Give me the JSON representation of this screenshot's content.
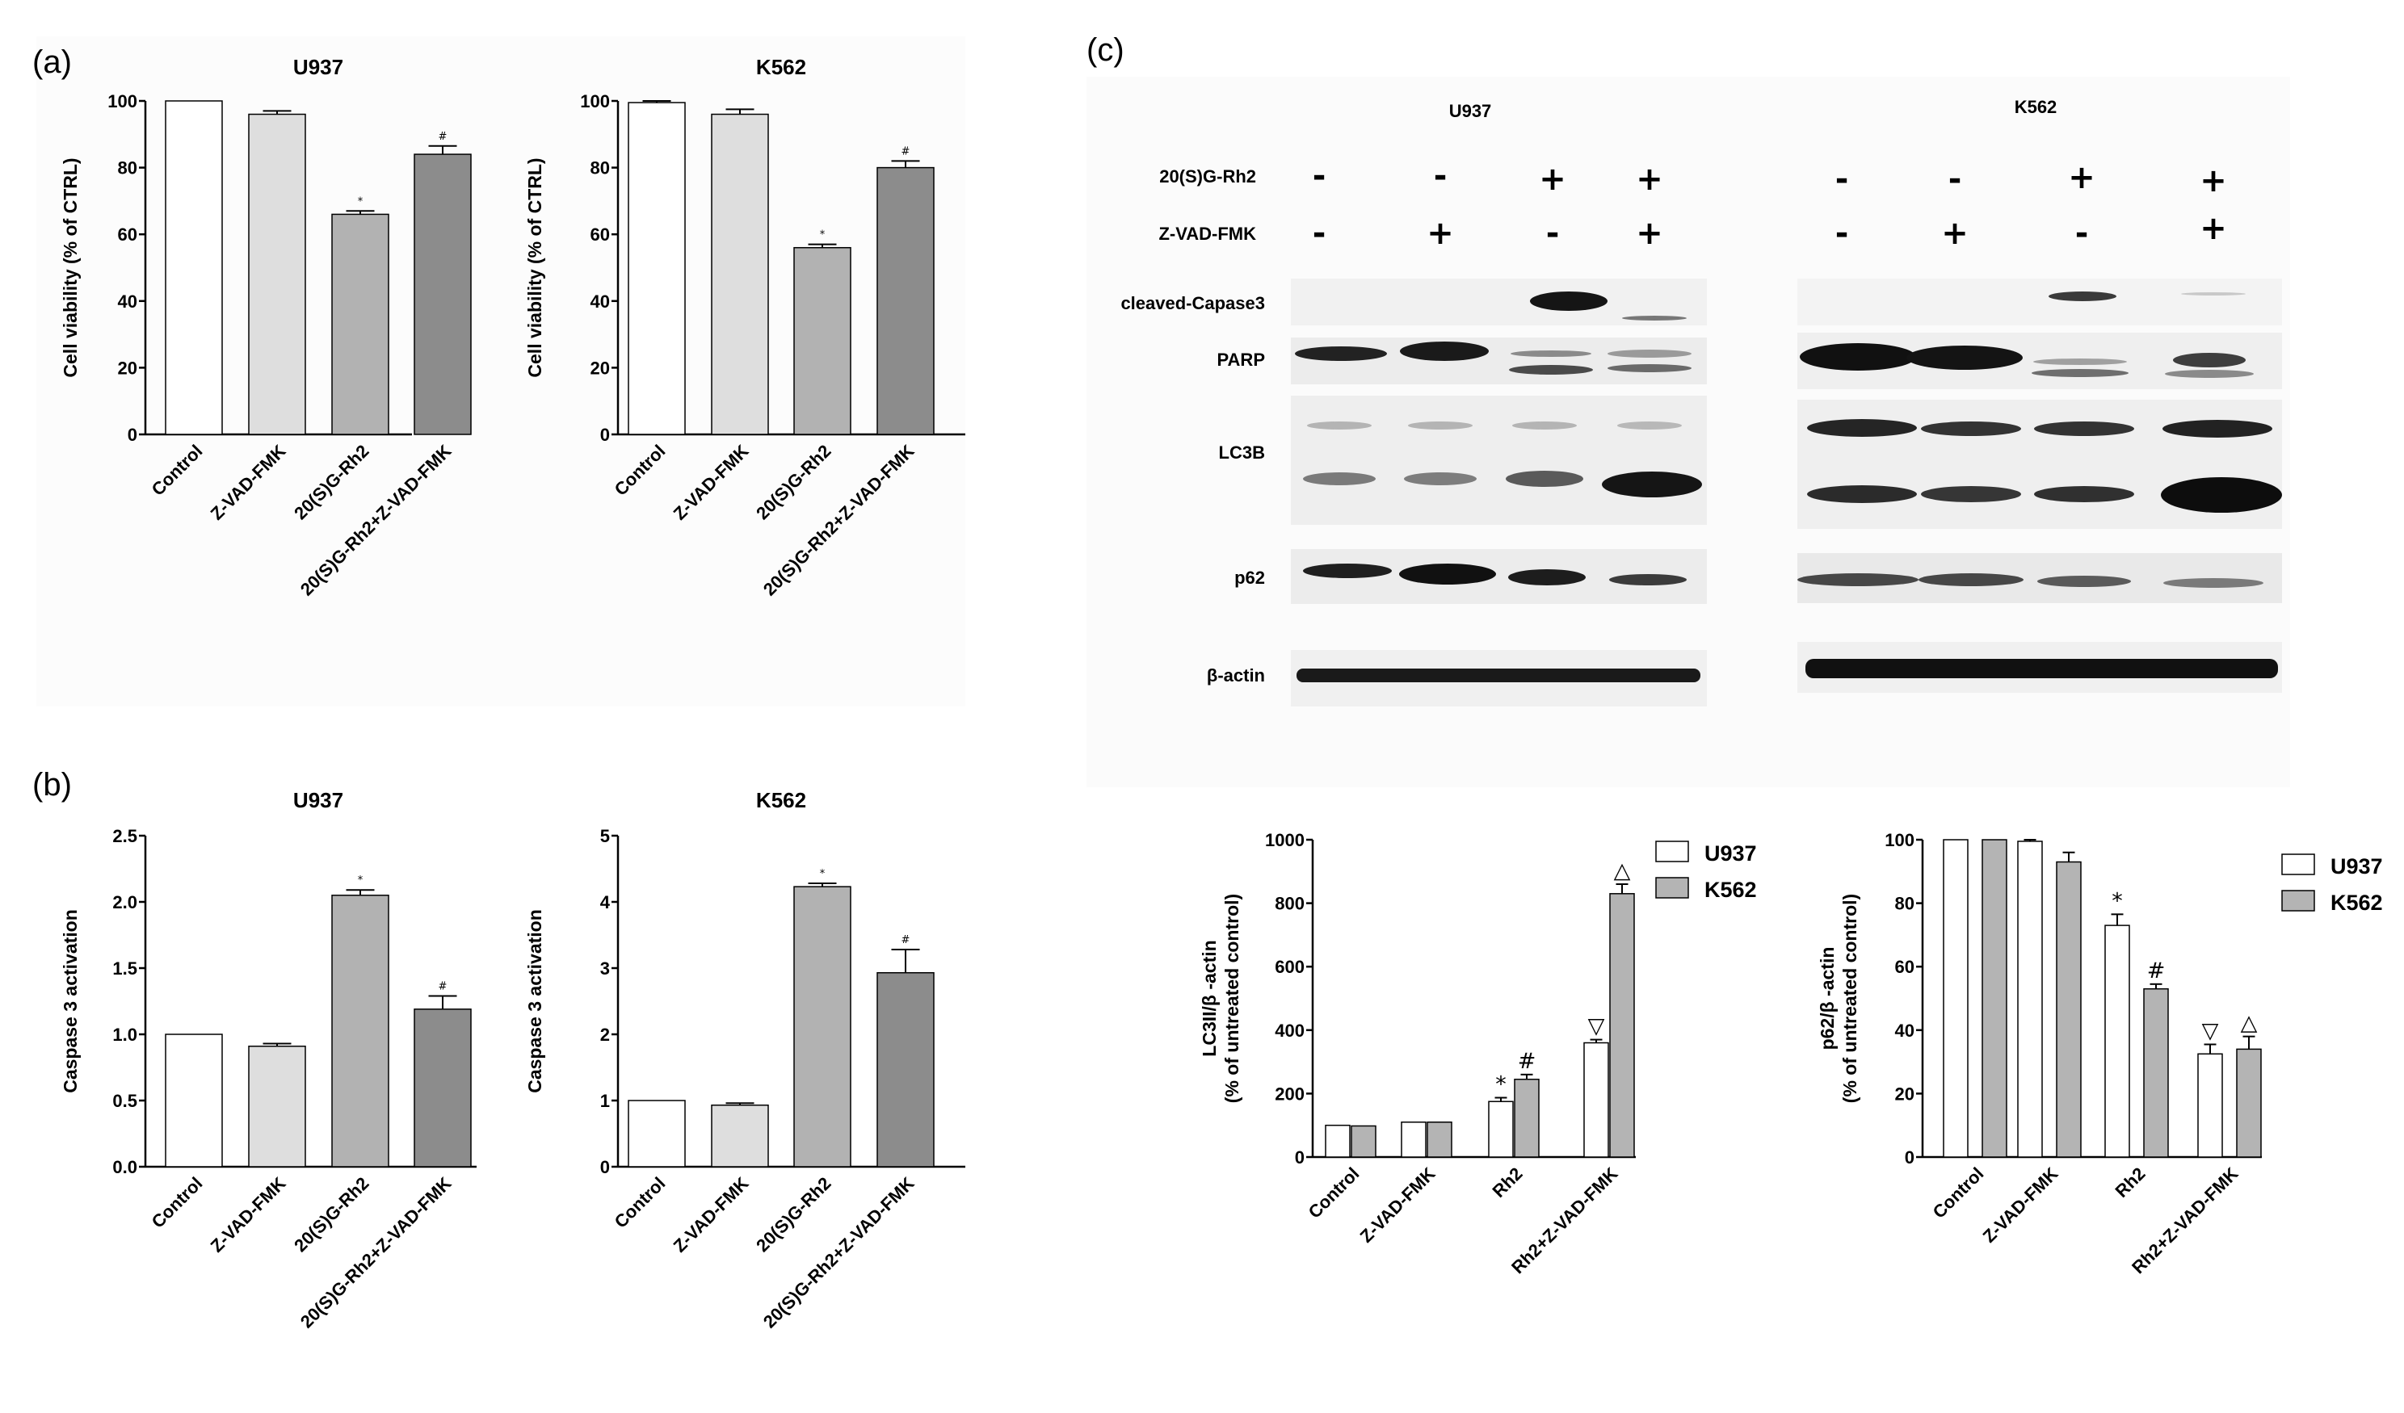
{
  "panel_labels": {
    "a": "(a)",
    "b": "(b)",
    "c": "(c)"
  },
  "chart_data": [
    {
      "id": "a_u937",
      "type": "bar",
      "title": "U937",
      "xlabel": "",
      "ylabel": "Cell viability (% of CTRL)",
      "categories": [
        "Control",
        "Z-VAD-FMK",
        "20(S)G-Rh2",
        "20(S)G-Rh2+Z-VAD-FMK"
      ],
      "values": [
        100,
        96,
        66,
        84
      ],
      "errors": [
        0,
        1,
        1,
        2.5
      ],
      "annotations": [
        "",
        "",
        "*",
        "#"
      ],
      "ylim": [
        0,
        100
      ],
      "yticks": [
        "0",
        "20",
        "40",
        "60",
        "80",
        "100"
      ],
      "colors": [
        "#ffffff",
        "#dedede",
        "#b2b2b2",
        "#8c8c8c"
      ]
    },
    {
      "id": "a_k562",
      "type": "bar",
      "title": "K562",
      "xlabel": "",
      "ylabel": "Cell viability (% of CTRL)",
      "categories": [
        "Control",
        "Z-VAD-FMK",
        "20(S)G-Rh2",
        "20(S)G-Rh2+Z-VAD-FMK"
      ],
      "values": [
        99.5,
        96,
        56,
        80
      ],
      "errors": [
        0.5,
        1.5,
        1,
        2
      ],
      "annotations": [
        "",
        "",
        "*",
        "#"
      ],
      "ylim": [
        0,
        100
      ],
      "yticks": [
        "0",
        "20",
        "40",
        "60",
        "80",
        "100"
      ],
      "colors": [
        "#ffffff",
        "#dedede",
        "#b2b2b2",
        "#8c8c8c"
      ]
    },
    {
      "id": "b_u937",
      "type": "bar",
      "title": "U937",
      "xlabel": "",
      "ylabel": "Caspase 3 activation",
      "categories": [
        "Control",
        "Z-VAD-FMK",
        "20(S)G-Rh2",
        "20(S)G-Rh2+Z-VAD-FMK"
      ],
      "values": [
        1.0,
        0.91,
        2.05,
        1.19
      ],
      "errors": [
        0,
        0.02,
        0.04,
        0.1
      ],
      "annotations": [
        "",
        "",
        "*",
        "#"
      ],
      "ylim": [
        0,
        2.5
      ],
      "yticks": [
        "0.0",
        "0.5",
        "1.0",
        "1.5",
        "2.0",
        "2.5"
      ],
      "colors": [
        "#ffffff",
        "#dedede",
        "#b2b2b2",
        "#8c8c8c"
      ]
    },
    {
      "id": "b_k562",
      "type": "bar",
      "title": "K562",
      "xlabel": "",
      "ylabel": "Caspase 3 activation",
      "categories": [
        "Control",
        "Z-VAD-FMK",
        "20(S)G-Rh2",
        "20(S)G-Rh2+Z-VAD-FMK"
      ],
      "values": [
        1.0,
        0.93,
        4.23,
        2.93
      ],
      "errors": [
        0,
        0.03,
        0.05,
        0.35
      ],
      "annotations": [
        "",
        "",
        "*",
        "#"
      ],
      "ylim": [
        0,
        5
      ],
      "yticks": [
        "0",
        "1",
        "2",
        "3",
        "4",
        "5"
      ],
      "colors": [
        "#ffffff",
        "#dedede",
        "#b2b2b2",
        "#8c8c8c"
      ]
    },
    {
      "id": "c_lc3",
      "type": "bar",
      "title": "",
      "xlabel": "",
      "ylabel": [
        "LC3II/β -actin",
        "(% of untreated control)"
      ],
      "categories": [
        "Control",
        "Z-VAD-FMK",
        "Rh2",
        "Rh2+Z-VAD-FMK"
      ],
      "series": [
        {
          "name": "U937",
          "values": [
            100,
            110,
            175,
            360
          ],
          "errors": [
            0,
            0,
            12,
            10
          ],
          "annotations": [
            "",
            "",
            "*",
            "▽"
          ]
        },
        {
          "name": "K562",
          "values": [
            98,
            110,
            245,
            830
          ],
          "errors": [
            0,
            0,
            15,
            30
          ],
          "annotations": [
            "",
            "",
            "#",
            "△"
          ]
        }
      ],
      "ylim": [
        0,
        1000
      ],
      "yticks": [
        "0",
        "200",
        "400",
        "600",
        "800",
        "1000"
      ],
      "colors": [
        "#ffffff",
        "#b4b4b4"
      ]
    },
    {
      "id": "c_p62",
      "type": "bar",
      "title": "",
      "xlabel": "",
      "ylabel": [
        "p62/β -actin",
        "(% of untreated control)"
      ],
      "categories": [
        "Control",
        "Z-VAD-FMK",
        "Rh2",
        "Rh2+Z-VAD-FMK"
      ],
      "series": [
        {
          "name": "U937",
          "values": [
            100,
            99.5,
            73,
            32.5
          ],
          "errors": [
            0,
            0.5,
            3.5,
            3
          ],
          "annotations": [
            "",
            "",
            "*",
            "▽"
          ]
        },
        {
          "name": "K562",
          "values": [
            100,
            93,
            53,
            34
          ],
          "errors": [
            0,
            3,
            1.5,
            4
          ],
          "annotations": [
            "",
            "",
            "#",
            "△"
          ]
        }
      ],
      "ylim": [
        0,
        100
      ],
      "yticks": [
        "0",
        "20",
        "40",
        "60",
        "80",
        "100"
      ],
      "colors": [
        "#ffffff",
        "#b4b4b4"
      ]
    }
  ],
  "western_blot": {
    "cell_lines": [
      "U937",
      "K562"
    ],
    "treatments": [
      {
        "label": "20(S)G-Rh2",
        "signs": [
          "-",
          "-",
          "+",
          "+"
        ]
      },
      {
        "label": "Z-VAD-FMK",
        "signs": [
          "-",
          "+",
          "-",
          "+"
        ]
      }
    ],
    "proteins": [
      "cleaved-Capase3",
      "PARP",
      "LC3B",
      "p62",
      "β-actin"
    ]
  }
}
